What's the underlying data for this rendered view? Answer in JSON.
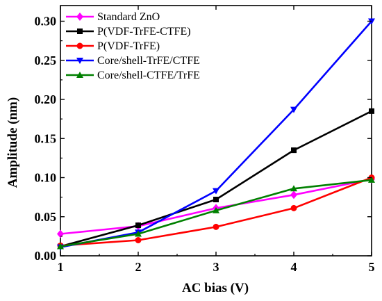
{
  "chart_data": {
    "type": "line",
    "title": "",
    "xlabel": "AC bias (V)",
    "ylabel": "Amplitude (nm)",
    "x": [
      1,
      2,
      3,
      4,
      5
    ],
    "xlim": [
      1,
      5
    ],
    "ylim": [
      0,
      0.32
    ],
    "xticks": [
      "1",
      "2",
      "3",
      "4",
      "5"
    ],
    "yticks": [
      "0.00",
      "0.05",
      "0.10",
      "0.15",
      "0.20",
      "0.25",
      "0.30"
    ],
    "grid": false,
    "legend_position": "top-left",
    "series": [
      {
        "name": "Standard ZnO",
        "color": "#ff00ff",
        "marker": "diamond",
        "values": [
          0.028,
          0.038,
          0.061,
          0.078,
          0.098
        ]
      },
      {
        "name": "P(VDF-TrFE-CTFE)",
        "color": "#000000",
        "marker": "square",
        "values": [
          0.012,
          0.039,
          0.072,
          0.135,
          0.185
        ]
      },
      {
        "name": "P(VDF-TrFE)",
        "color": "#ff0000",
        "marker": "circle",
        "values": [
          0.013,
          0.02,
          0.037,
          0.061,
          0.1
        ]
      },
      {
        "name": "Core/shell-TrFE/CTFE",
        "color": "#0000ff",
        "marker": "triangle-down",
        "values": [
          0.011,
          0.03,
          0.083,
          0.187,
          0.3
        ]
      },
      {
        "name": "Core/shell-CTFE/TrFE",
        "color": "#008000",
        "marker": "triangle-up",
        "values": [
          0.012,
          0.028,
          0.058,
          0.086,
          0.097
        ]
      }
    ]
  }
}
